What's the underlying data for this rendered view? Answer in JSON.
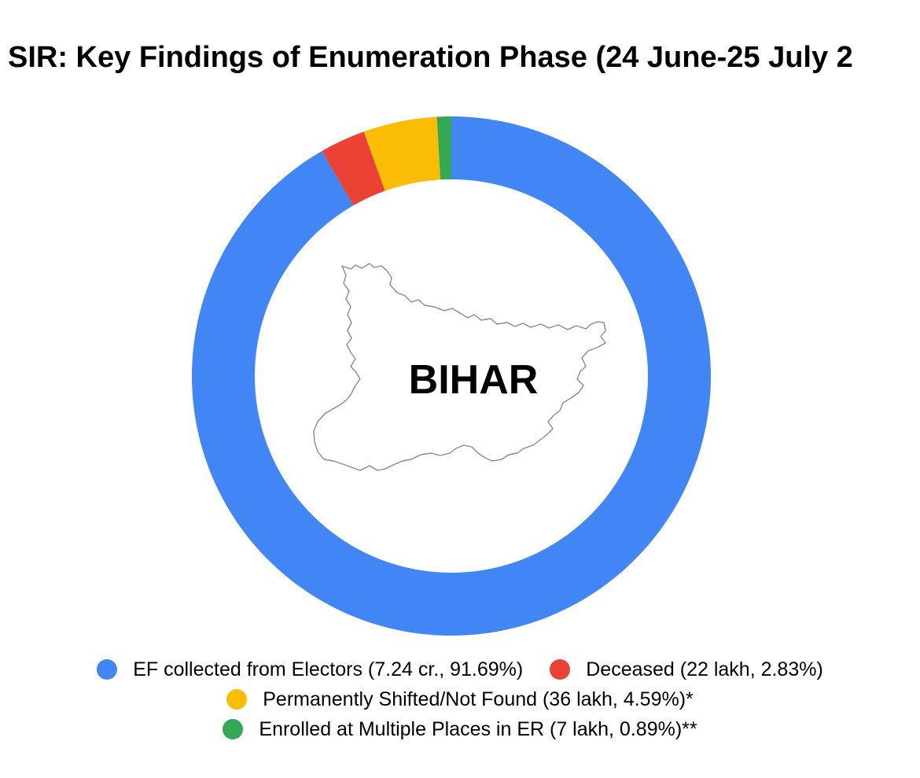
{
  "title": "SIR: Key Findings of Enumeration Phase (24 June-25 July 2",
  "center_label": "BIHAR",
  "map_icon": "bihar-state-outline",
  "colors": {
    "blue": "#4285F4",
    "red": "#EA4335",
    "yellow": "#FBBC04",
    "green": "#34A853"
  },
  "chart_data": {
    "type": "pie",
    "style": "donut",
    "title": "SIR: Key Findings of Enumeration Phase (24 June-25 July 2",
    "legend_position": "bottom",
    "slices": [
      {
        "label": "EF collected from Electors (7.24 cr., 91.69%)",
        "value": 91.69,
        "color": "#4285F4"
      },
      {
        "label": "Deceased (22 lakh, 2.83%)",
        "value": 2.83,
        "color": "#EA4335"
      },
      {
        "label": "Permanently Shifted/Not Found (36 lakh, 4.59%)*",
        "value": 4.59,
        "color": "#FBBC04"
      },
      {
        "label": "Enrolled at Multiple Places in ER (7 lakh, 0.89%)**",
        "value": 0.89,
        "color": "#34A853"
      }
    ]
  }
}
